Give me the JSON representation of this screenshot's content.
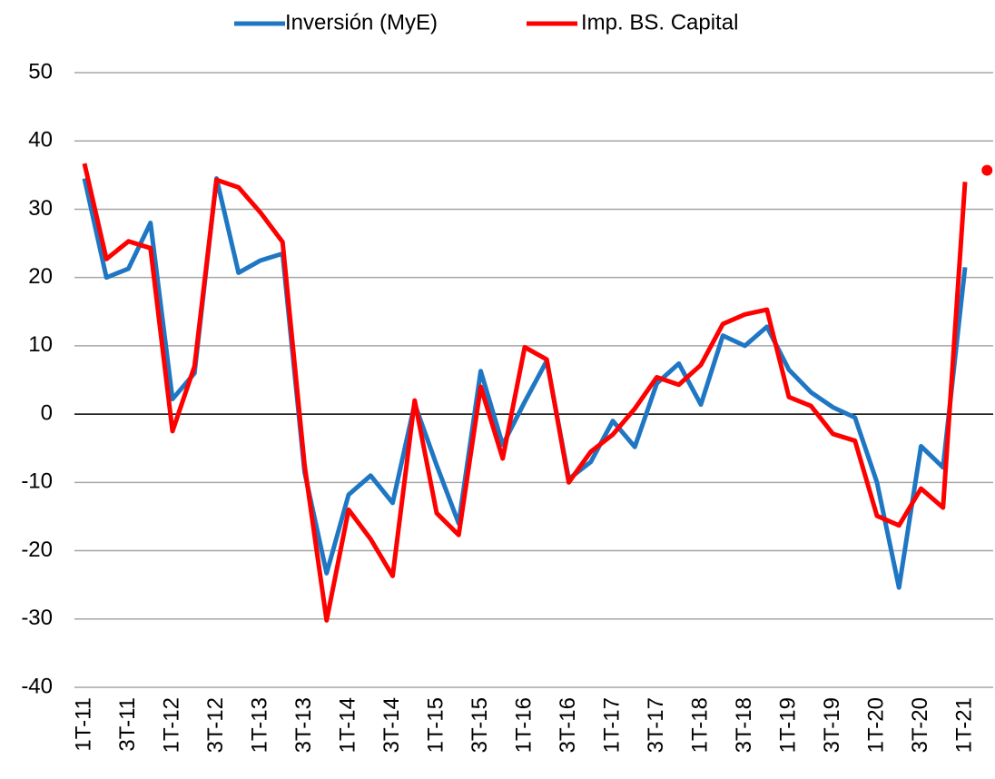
{
  "chart_data": {
    "type": "line",
    "categories": [
      "1T-11",
      null,
      "3T-11",
      null,
      "1T-12",
      null,
      "3T-12",
      null,
      "1T-13",
      null,
      "3T-13",
      null,
      "1T-14",
      null,
      "3T-14",
      null,
      "1T-15",
      null,
      "3T-15",
      null,
      "1T-16",
      null,
      "3T-16",
      null,
      "1T-17",
      null,
      "3T-17",
      null,
      "1T-18",
      null,
      "3T-18",
      null,
      "1T-19",
      null,
      "3T-19",
      null,
      "1T-20",
      null,
      "3T-20",
      null,
      "1T-21",
      null
    ],
    "series": [
      {
        "name": "Inversión (MyE)",
        "color": "#1f77c4",
        "values": [
          34.5,
          20,
          21.3,
          28,
          2.2,
          6,
          34.5,
          20.7,
          22.5,
          23.5,
          -8.5,
          -23.3,
          -11.8,
          -9,
          -13,
          1.5,
          -7.5,
          -16,
          6.3,
          -4.5,
          1.8,
          7.8,
          -9.5,
          -7,
          -1,
          -4.8,
          4.5,
          7.4,
          1.4,
          11.5,
          10,
          12.8,
          6.5,
          3.2,
          1,
          -0.5,
          -10,
          -25.4,
          -4.7,
          -7.8,
          21.5,
          null
        ]
      },
      {
        "name": "Imp. BS. Capital",
        "color": "#ff0000",
        "values": [
          36.7,
          22.7,
          25.3,
          24.3,
          -2.5,
          7,
          34.3,
          33.2,
          29.5,
          25.2,
          -7.5,
          -30.2,
          -14,
          -18.3,
          -23.7,
          2,
          -14.5,
          -17.7,
          4,
          -6.5,
          9.8,
          8,
          -10,
          -5.5,
          -3,
          0.8,
          5.4,
          4.3,
          7.2,
          13.2,
          14.6,
          15.3,
          2.5,
          1.2,
          -2.9,
          -3.9,
          -14.9,
          -16.3,
          -10.9,
          -13.7,
          34,
          null
        ]
      },
      {
        "color": "#ff0000",
        "marker": true,
        "values": [
          null,
          null,
          null,
          null,
          null,
          null,
          null,
          null,
          null,
          null,
          null,
          null,
          null,
          null,
          null,
          null,
          null,
          null,
          null,
          null,
          null,
          null,
          null,
          null,
          null,
          null,
          null,
          null,
          null,
          null,
          null,
          null,
          null,
          null,
          null,
          null,
          null,
          null,
          null,
          null,
          null,
          35.7
        ]
      }
    ],
    "ylim": [
      -40,
      50
    ],
    "yticks": [
      -40,
      -30,
      -20,
      -10,
      0,
      10,
      20,
      30,
      40,
      50
    ],
    "grid": true
  }
}
